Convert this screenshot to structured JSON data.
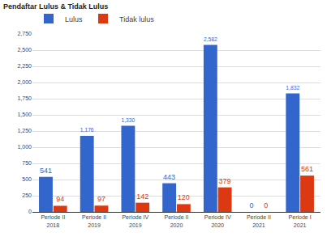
{
  "chart_data": {
    "type": "bar",
    "title": "Pendaftar Lulus & Tidak Lulus",
    "categories": [
      "Periode II\n2018",
      "Periode II\n2019",
      "Periode IV\n2019",
      "Periode II\n2020",
      "Periode IV\n2020",
      "Periode II\n2021",
      "Periode I\n2021"
    ],
    "series": [
      {
        "name": "Lulus",
        "color": "#3366cc",
        "values": [
          541,
          1176,
          1330,
          443,
          2582,
          0,
          1832
        ],
        "value_labels": [
          "541",
          "1,176",
          "1,330",
          "443",
          "2,582",
          "0",
          "1,832"
        ]
      },
      {
        "name": "Tidak lulus",
        "color": "#dc3912",
        "values": [
          94,
          97,
          142,
          120,
          379,
          0,
          561
        ]
      }
    ],
    "ylim": [
      0,
      2750
    ],
    "yticks": [
      0,
      250,
      500,
      750,
      {
        "value": 1000,
        "label": "1,000"
      },
      {
        "value": 1250,
        "label": "1,250"
      },
      {
        "value": 1500,
        "label": "1,500"
      },
      {
        "value": 1750,
        "label": "1,750"
      },
      {
        "value": 2000,
        "label": "2,000"
      },
      {
        "value": 2250,
        "label": "2,250"
      },
      {
        "value": 2500,
        "label": "2,500"
      },
      {
        "value": 2750,
        "label": "2,750"
      }
    ],
    "grid": true,
    "legend": "top-left",
    "data_labels": true
  }
}
